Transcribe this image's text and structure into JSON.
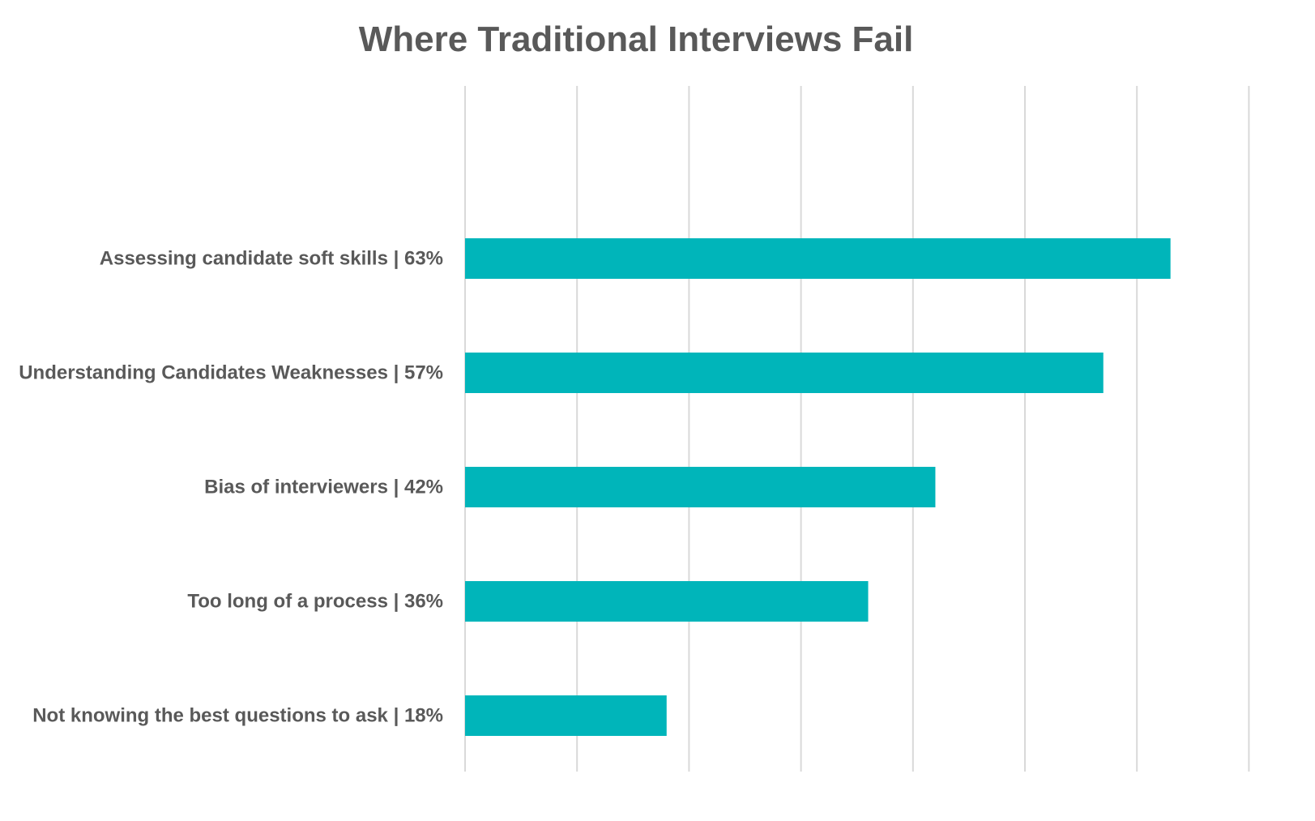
{
  "chart_data": {
    "type": "bar",
    "orientation": "horizontal",
    "title": "Where Traditional Interviews Fail",
    "categories": [
      "Assessing candidate soft skills | 63%",
      "Understanding Candidates Weaknesses | 57%",
      "Bias of interviewers | 42%",
      "Too long of a process | 36%",
      "Not knowing the best questions to ask | 18%"
    ],
    "values": [
      63,
      57,
      42,
      36,
      18
    ],
    "xlim": [
      0,
      70
    ],
    "x_gridline_step": 10,
    "grid": true,
    "legend": "none",
    "bar_color": "#00B5BA",
    "gridline_color": "#D9D9D9",
    "text_color": "#595959",
    "xlabel": "",
    "ylabel": ""
  }
}
